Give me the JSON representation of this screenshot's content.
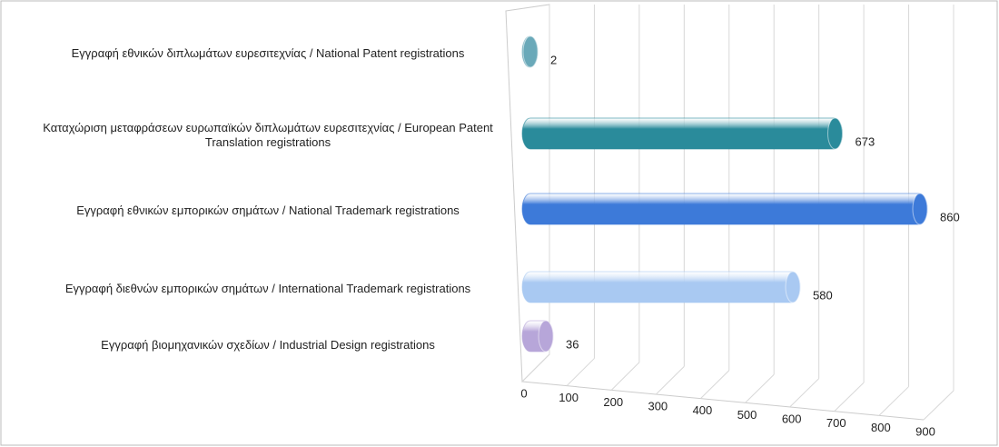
{
  "chart_data": {
    "type": "bar",
    "categories": [
      "Εγγραφή  εθνικών διπλωμάτων ευρεσιτεχνίας / National Patent registrations",
      "Καταχώριση μεταφράσεων ευρωπαϊκών διπλωμάτων ευρεσιτεχνίας / European Patent Translation registrations",
      "Εγγραφή  εθνικών εμπορικών σημάτων / National Trademark registrations",
      "Εγγραφή  διεθνών εμπορικών σημάτων / International Trademark registrations",
      "Εγγραφή  βιομηχανικών σχεδίων / Industrial Design registrations"
    ],
    "values": [
      2,
      673,
      860,
      580,
      36
    ],
    "colors": [
      "#6aa9b9",
      "#2a8b9b",
      "#3d7ad9",
      "#a9c9f2",
      "#b7a6d9"
    ],
    "xlim": [
      0,
      900
    ],
    "xticks": [
      0,
      100,
      200,
      300,
      400,
      500,
      600,
      700,
      800,
      900
    ],
    "grid": true
  }
}
